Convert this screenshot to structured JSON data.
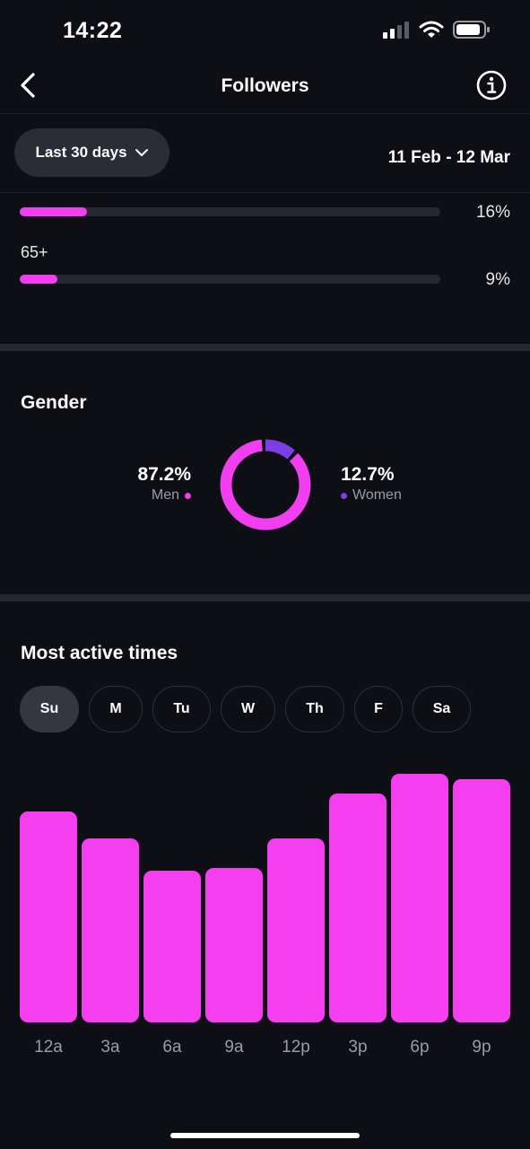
{
  "status_bar": {
    "time": "14:22"
  },
  "header": {
    "title": "Followers"
  },
  "filter": {
    "range_label": "Last 30 days",
    "date_range": "11 Feb - 12 Mar"
  },
  "age": {
    "rows": [
      {
        "label": "",
        "percent": 16,
        "percent_text": "16%"
      },
      {
        "label": "65+",
        "percent": 9,
        "percent_text": "9%"
      }
    ]
  },
  "gender": {
    "title": "Gender",
    "men": {
      "value": "87.2%",
      "label": "Men",
      "color": "#f03ef0",
      "fraction": 0.872
    },
    "women": {
      "value": "12.7%",
      "label": "Women",
      "color": "#7b3fe4",
      "fraction": 0.127
    }
  },
  "active_times": {
    "title": "Most active times",
    "days": [
      "Su",
      "M",
      "Tu",
      "W",
      "Th",
      "F",
      "Sa"
    ],
    "selected_day": "Su"
  },
  "chart_data": {
    "type": "bar",
    "categories": [
      "12a",
      "3a",
      "6a",
      "9a",
      "12p",
      "3p",
      "6p",
      "9p"
    ],
    "values": [
      85,
      74,
      61,
      62,
      74,
      92,
      100,
      98
    ],
    "ylim": [
      0,
      100
    ],
    "color": "#f43ef0"
  }
}
